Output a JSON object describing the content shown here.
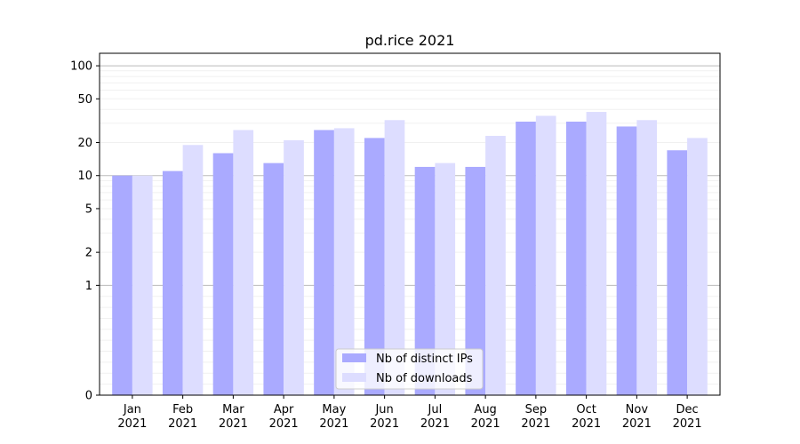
{
  "chart_data": {
    "type": "bar",
    "title": "pd.rice 2021",
    "xlabel": "",
    "ylabel": "",
    "yscale": "symlog",
    "ylim": [
      0,
      130
    ],
    "yticks": [
      0,
      1,
      2,
      5,
      10,
      20,
      50,
      100
    ],
    "grid": "horizontal, major and minor",
    "legend_position": "lower center",
    "categories": [
      "Jan\n2021",
      "Feb\n2021",
      "Mar\n2021",
      "Apr\n2021",
      "May\n2021",
      "Jun\n2021",
      "Jul\n2021",
      "Aug\n2021",
      "Sep\n2021",
      "Oct\n2021",
      "Nov\n2021",
      "Dec\n2021"
    ],
    "series": [
      {
        "name": "Nb of distinct IPs",
        "color": "#aaaaff",
        "values": [
          10,
          11,
          16,
          13,
          26,
          22,
          12,
          12,
          31,
          31,
          28,
          17
        ]
      },
      {
        "name": "Nb of downloads",
        "color": "#ddddff",
        "values": [
          10,
          19,
          26,
          21,
          27,
          32,
          13,
          23,
          35,
          38,
          32,
          22
        ]
      }
    ]
  }
}
